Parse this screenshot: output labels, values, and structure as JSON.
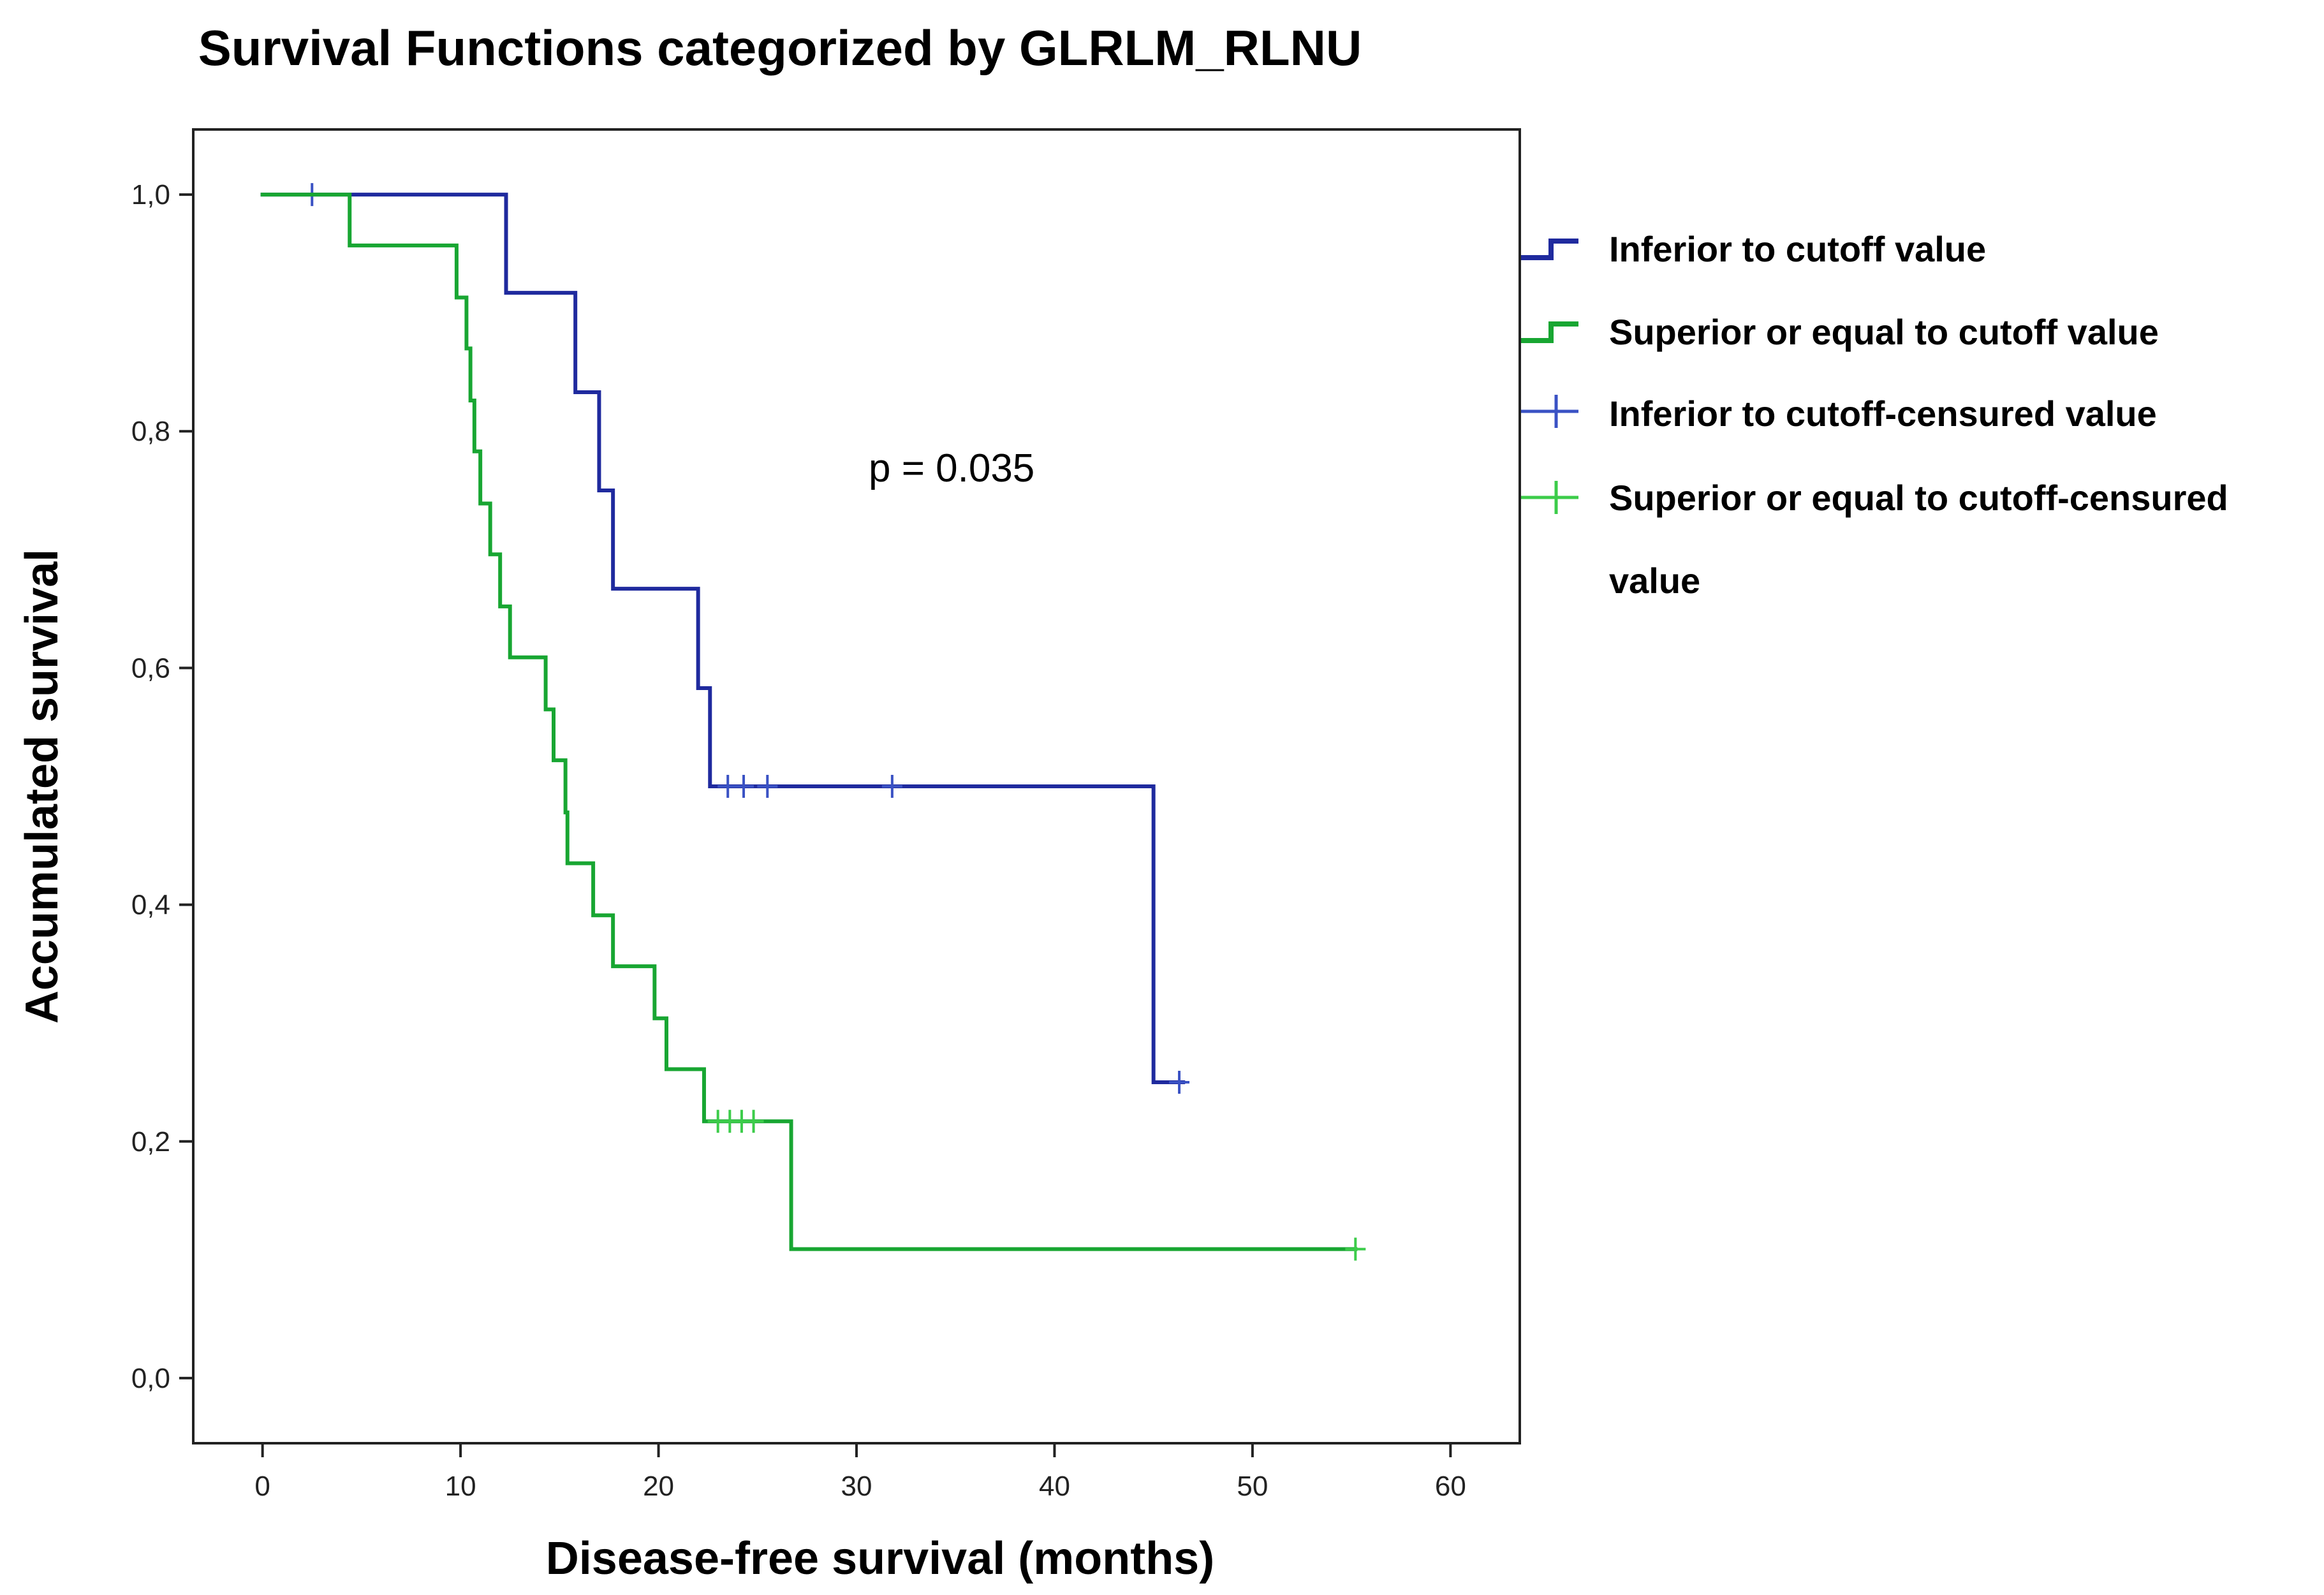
{
  "chart_data": {
    "type": "line",
    "step": true,
    "title": "Survival Functions categorized by GLRLM_RLNU",
    "xlabel": "Disease-free survival (months)",
    "ylabel": "Accumulated survival",
    "xlim": [
      -3.5,
      63.5
    ],
    "ylim": [
      -0.055,
      1.055
    ],
    "x_ticks": [
      0,
      10,
      20,
      30,
      40,
      50,
      60
    ],
    "x_tick_labels": [
      "0",
      "10",
      "20",
      "30",
      "40",
      "50",
      "60"
    ],
    "y_ticks": [
      0.0,
      0.2,
      0.4,
      0.6,
      0.8,
      1.0
    ],
    "y_tick_labels": [
      "0,0",
      "0,2",
      "0,4",
      "0,6",
      "0,8",
      "1,0"
    ],
    "annotation": "p = 0.035",
    "legend_position": "right",
    "legend": [
      {
        "label": "Inferior to cutoff value",
        "kind": "line",
        "color": "#1f2a9e"
      },
      {
        "label": "Superior or equal to cutoff value",
        "kind": "line",
        "color": "#18a632"
      },
      {
        "label": "Inferior to cutoff-censured value",
        "kind": "censor",
        "color": "#3a52c4"
      },
      {
        "label": "Superior or equal to cutoff-censured",
        "label_line2": "value",
        "kind": "censor",
        "color": "#3ccc4a"
      }
    ],
    "series": [
      {
        "name": "Inferior to cutoff value",
        "color": "#1f2a9e",
        "censor_color": "#3a52c4",
        "x": [
          0,
          12.3,
          15.8,
          17.0,
          17.7,
          22.0,
          22.6,
          45.0,
          46.5
        ],
        "y": [
          1.0,
          0.917,
          0.833,
          0.75,
          0.667,
          0.583,
          0.5,
          0.25,
          0.25
        ],
        "censored": [
          [
            2.5,
            1.0
          ],
          [
            23.5,
            0.5
          ],
          [
            24.3,
            0.5
          ],
          [
            25.5,
            0.5
          ],
          [
            31.8,
            0.5
          ],
          [
            46.3,
            0.25
          ]
        ]
      },
      {
        "name": "Superior or equal to cutoff value",
        "color": "#18a632",
        "censor_color": "#3ccc4a",
        "x": [
          0,
          4.4,
          9.8,
          10.3,
          10.5,
          10.7,
          11.0,
          11.5,
          12.0,
          12.5,
          14.3,
          14.7,
          15.3,
          15.4,
          16.7,
          17.7,
          19.8,
          20.4,
          22.3,
          26.7,
          55.2
        ],
        "y": [
          1.0,
          0.957,
          0.913,
          0.87,
          0.826,
          0.783,
          0.739,
          0.696,
          0.652,
          0.609,
          0.565,
          0.522,
          0.478,
          0.435,
          0.391,
          0.348,
          0.304,
          0.261,
          0.217,
          0.109,
          0.109
        ],
        "censored": [
          [
            23.0,
            0.217
          ],
          [
            23.6,
            0.217
          ],
          [
            24.2,
            0.217
          ],
          [
            24.8,
            0.217
          ],
          [
            55.2,
            0.109
          ]
        ]
      }
    ]
  }
}
